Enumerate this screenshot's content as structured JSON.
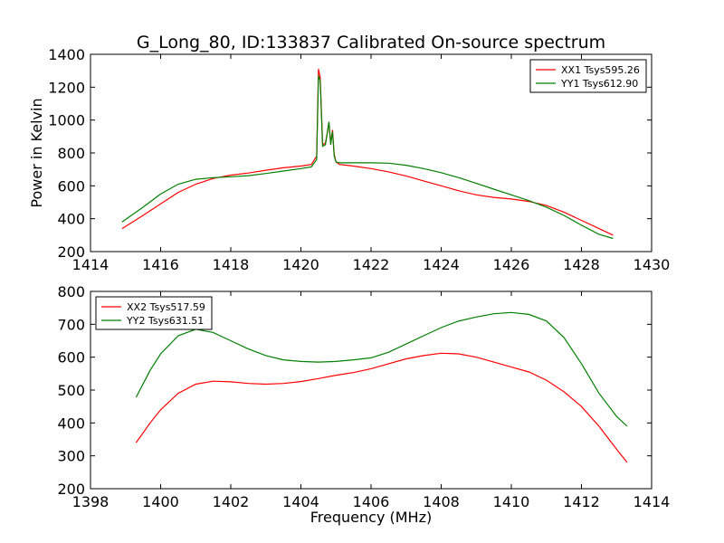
{
  "colors": {
    "red": "#ff0000",
    "green": "#008000"
  },
  "chart_data": [
    {
      "type": "line",
      "title": "G_Long_80, ID:133837 Calibrated On-source spectrum",
      "xlabel": "",
      "ylabel": "Power in Kelvin",
      "xlim": [
        1414,
        1430
      ],
      "ylim": [
        200,
        1400
      ],
      "xticks": [
        1414,
        1416,
        1418,
        1420,
        1422,
        1424,
        1426,
        1428,
        1430
      ],
      "yticks": [
        200,
        400,
        600,
        800,
        1000,
        1200,
        1400
      ],
      "legend_position": "top-right",
      "series": [
        {
          "name": "XX1 Tsys595.26",
          "color": "#ff0000",
          "x": [
            1414.9,
            1415.5,
            1416.0,
            1416.5,
            1417.0,
            1417.5,
            1418.0,
            1418.5,
            1419.0,
            1419.5,
            1420.0,
            1420.3,
            1420.45,
            1420.5,
            1420.55,
            1420.62,
            1420.7,
            1420.8,
            1420.85,
            1420.9,
            1420.95,
            1421.0,
            1421.1,
            1421.5,
            1422.0,
            1422.5,
            1423.0,
            1423.5,
            1424.0,
            1424.5,
            1425.0,
            1425.5,
            1426.0,
            1426.5,
            1427.0,
            1427.5,
            1428.0,
            1428.5,
            1428.9
          ],
          "values": [
            340,
            420,
            490,
            560,
            610,
            645,
            665,
            678,
            695,
            710,
            720,
            730,
            780,
            1310,
            1260,
            850,
            860,
            980,
            860,
            940,
            790,
            745,
            730,
            720,
            705,
            685,
            660,
            630,
            600,
            570,
            545,
            530,
            520,
            505,
            480,
            440,
            390,
            340,
            300
          ]
        },
        {
          "name": "YY1 Tsys612.90",
          "color": "#008000",
          "x": [
            1414.9,
            1415.5,
            1416.0,
            1416.5,
            1417.0,
            1417.5,
            1418.0,
            1418.5,
            1419.0,
            1419.5,
            1420.0,
            1420.3,
            1420.45,
            1420.5,
            1420.55,
            1420.62,
            1420.7,
            1420.8,
            1420.85,
            1420.9,
            1420.95,
            1421.0,
            1421.1,
            1421.5,
            1422.0,
            1422.5,
            1423.0,
            1423.5,
            1424.0,
            1424.5,
            1425.0,
            1425.5,
            1426.0,
            1426.5,
            1427.0,
            1427.5,
            1428.0,
            1428.5,
            1428.9
          ],
          "values": [
            380,
            470,
            550,
            610,
            640,
            650,
            655,
            662,
            675,
            690,
            705,
            715,
            760,
            1270,
            1240,
            840,
            850,
            990,
            850,
            930,
            780,
            745,
            740,
            740,
            740,
            738,
            725,
            705,
            680,
            650,
            615,
            580,
            545,
            510,
            470,
            420,
            360,
            305,
            280
          ]
        }
      ]
    },
    {
      "type": "line",
      "title": "",
      "xlabel": "Frequency (MHz)",
      "ylabel": "",
      "xlim": [
        1398,
        1414
      ],
      "ylim": [
        200,
        800
      ],
      "xticks": [
        1398,
        1400,
        1402,
        1404,
        1406,
        1408,
        1410,
        1412,
        1414
      ],
      "yticks": [
        200,
        300,
        400,
        500,
        600,
        700,
        800
      ],
      "legend_position": "top-left",
      "series": [
        {
          "name": "XX2 Tsys517.59",
          "color": "#ff0000",
          "x": [
            1399.3,
            1399.7,
            1400.0,
            1400.5,
            1401.0,
            1401.5,
            1402.0,
            1402.5,
            1403.0,
            1403.5,
            1404.0,
            1404.5,
            1405.0,
            1405.5,
            1406.0,
            1406.5,
            1407.0,
            1407.5,
            1408.0,
            1408.5,
            1409.0,
            1409.5,
            1410.0,
            1410.5,
            1411.0,
            1411.5,
            1412.0,
            1412.5,
            1413.0,
            1413.3
          ],
          "values": [
            340,
            400,
            440,
            490,
            518,
            527,
            525,
            520,
            518,
            520,
            526,
            535,
            545,
            553,
            565,
            580,
            595,
            605,
            612,
            610,
            600,
            585,
            570,
            555,
            530,
            495,
            450,
            390,
            320,
            280
          ]
        },
        {
          "name": "YY2 Tsys631.51",
          "color": "#008000",
          "x": [
            1399.3,
            1399.7,
            1400.0,
            1400.5,
            1401.0,
            1401.5,
            1402.0,
            1402.5,
            1403.0,
            1403.5,
            1404.0,
            1404.5,
            1405.0,
            1405.5,
            1406.0,
            1406.5,
            1407.0,
            1407.5,
            1408.0,
            1408.5,
            1409.0,
            1409.5,
            1410.0,
            1410.5,
            1411.0,
            1411.5,
            1412.0,
            1412.5,
            1413.0,
            1413.3
          ],
          "values": [
            478,
            560,
            610,
            665,
            685,
            675,
            650,
            625,
            605,
            592,
            587,
            585,
            587,
            592,
            598,
            615,
            640,
            665,
            690,
            710,
            722,
            732,
            736,
            730,
            710,
            660,
            580,
            490,
            420,
            390
          ]
        }
      ]
    }
  ]
}
